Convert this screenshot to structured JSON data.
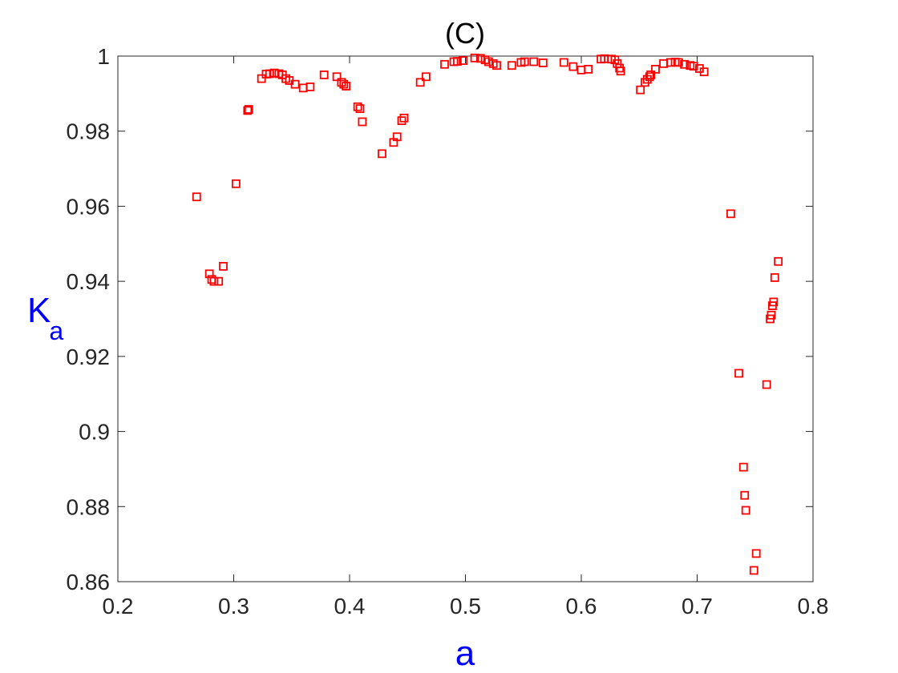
{
  "colors": {
    "marker": "#ff0000",
    "axis_label": "#0000ff",
    "axis": "#262626",
    "background": "#ffffff"
  },
  "chart_data": {
    "type": "scatter",
    "title": "(C)",
    "xlabel": "a",
    "ylabel_main": "K",
    "ylabel_sub": "a",
    "xlim": [
      0.2,
      0.8
    ],
    "ylim": [
      0.86,
      1.0
    ],
    "xticks": [
      0.2,
      0.3,
      0.4,
      0.5,
      0.6,
      0.7,
      0.8
    ],
    "xtick_labels": [
      "0.2",
      "0.3",
      "0.4",
      "0.5",
      "0.6",
      "0.7",
      "0.8"
    ],
    "yticks": [
      0.86,
      0.88,
      0.9,
      0.92,
      0.94,
      0.96,
      0.98,
      1.0
    ],
    "ytick_labels": [
      "0.86",
      "0.88",
      "0.9",
      "0.92",
      "0.94",
      "0.96",
      "0.98",
      "1"
    ],
    "grid": false,
    "legend": "none",
    "marker": "open-square",
    "points": [
      [
        0.268,
        0.9625
      ],
      [
        0.279,
        0.942
      ],
      [
        0.281,
        0.9405
      ],
      [
        0.283,
        0.94
      ],
      [
        0.287,
        0.94
      ],
      [
        0.291,
        0.944
      ],
      [
        0.302,
        0.966
      ],
      [
        0.312,
        0.9855
      ],
      [
        0.313,
        0.9858
      ],
      [
        0.324,
        0.994
      ],
      [
        0.328,
        0.9952
      ],
      [
        0.331,
        0.9953
      ],
      [
        0.335,
        0.9955
      ],
      [
        0.339,
        0.9953
      ],
      [
        0.342,
        0.995
      ],
      [
        0.345,
        0.994
      ],
      [
        0.348,
        0.9935
      ],
      [
        0.353,
        0.9925
      ],
      [
        0.36,
        0.9915
      ],
      [
        0.366,
        0.9918
      ],
      [
        0.378,
        0.995
      ],
      [
        0.389,
        0.9945
      ],
      [
        0.393,
        0.993
      ],
      [
        0.395,
        0.9925
      ],
      [
        0.397,
        0.992
      ],
      [
        0.407,
        0.9865
      ],
      [
        0.409,
        0.986
      ],
      [
        0.411,
        0.9825
      ],
      [
        0.428,
        0.974
      ],
      [
        0.438,
        0.977
      ],
      [
        0.441,
        0.9785
      ],
      [
        0.445,
        0.9828
      ],
      [
        0.447,
        0.9835
      ],
      [
        0.461,
        0.993
      ],
      [
        0.466,
        0.9945
      ],
      [
        0.482,
        0.9978
      ],
      [
        0.49,
        0.9985
      ],
      [
        0.493,
        0.9986
      ],
      [
        0.498,
        0.9988
      ],
      [
        0.508,
        0.9995
      ],
      [
        0.513,
        0.9994
      ],
      [
        0.517,
        0.999
      ],
      [
        0.52,
        0.9985
      ],
      [
        0.524,
        0.998
      ],
      [
        0.527,
        0.9975
      ],
      [
        0.54,
        0.9975
      ],
      [
        0.548,
        0.9983
      ],
      [
        0.551,
        0.9985
      ],
      [
        0.559,
        0.9985
      ],
      [
        0.567,
        0.9982
      ],
      [
        0.585,
        0.9983
      ],
      [
        0.593,
        0.9972
      ],
      [
        0.6,
        0.9963
      ],
      [
        0.606,
        0.9965
      ],
      [
        0.617,
        0.9992
      ],
      [
        0.62,
        0.9993
      ],
      [
        0.626,
        0.9992
      ],
      [
        0.629,
        0.999
      ],
      [
        0.631,
        0.998
      ],
      [
        0.633,
        0.9968
      ],
      [
        0.634,
        0.996
      ],
      [
        0.651,
        0.991
      ],
      [
        0.655,
        0.993
      ],
      [
        0.657,
        0.9938
      ],
      [
        0.659,
        0.9945
      ],
      [
        0.66,
        0.995
      ],
      [
        0.664,
        0.9965
      ],
      [
        0.671,
        0.998
      ],
      [
        0.677,
        0.9983
      ],
      [
        0.681,
        0.9984
      ],
      [
        0.684,
        0.9983
      ],
      [
        0.689,
        0.9978
      ],
      [
        0.694,
        0.9975
      ],
      [
        0.697,
        0.9973
      ],
      [
        0.702,
        0.9967
      ],
      [
        0.706,
        0.9958
      ],
      [
        0.729,
        0.958
      ],
      [
        0.736,
        0.9155
      ],
      [
        0.74,
        0.8905
      ],
      [
        0.741,
        0.883
      ],
      [
        0.742,
        0.879
      ],
      [
        0.749,
        0.863
      ],
      [
        0.751,
        0.8675
      ],
      [
        0.76,
        0.9125
      ],
      [
        0.763,
        0.93
      ],
      [
        0.764,
        0.931
      ],
      [
        0.765,
        0.9335
      ],
      [
        0.766,
        0.9345
      ],
      [
        0.767,
        0.941
      ],
      [
        0.77,
        0.9453
      ]
    ]
  }
}
